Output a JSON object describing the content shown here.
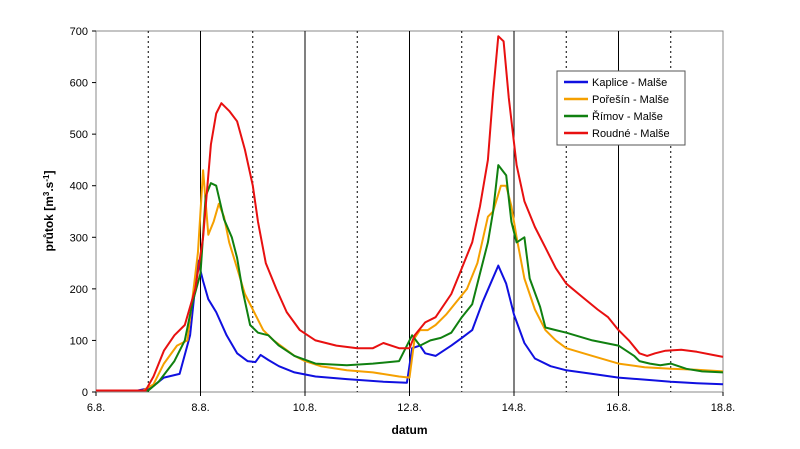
{
  "chart_data": {
    "type": "line",
    "title": "",
    "xlabel": "datum",
    "ylabel": "průtok [m³.s⁻¹]",
    "ylabel_parts": {
      "base": "průtok [m",
      "sup1": "3",
      "mid": ".s",
      "sup2": "-1",
      "end": "]"
    },
    "xlim": [
      0,
      12
    ],
    "ylim": [
      0,
      700
    ],
    "x_ticks": [
      {
        "x": 0,
        "label": "6.8."
      },
      {
        "x": 2,
        "label": "8.8."
      },
      {
        "x": 4,
        "label": "10.8."
      },
      {
        "x": 6,
        "label": "12.8."
      },
      {
        "x": 8,
        "label": "14.8."
      },
      {
        "x": 10,
        "label": "16.8."
      },
      {
        "x": 12,
        "label": "18.8."
      }
    ],
    "y_ticks": [
      0,
      100,
      200,
      300,
      400,
      500,
      600,
      700
    ],
    "vgrid_solid": [
      2,
      4,
      6,
      8,
      10
    ],
    "vgrid_dashed": [
      1,
      3,
      5,
      7,
      9,
      11
    ],
    "legend": {
      "position": "top-right"
    },
    "series": [
      {
        "name": "Kaplice - Malše",
        "color": "#1010e0",
        "points": [
          [
            0,
            3
          ],
          [
            0.8,
            3
          ],
          [
            1.05,
            8
          ],
          [
            1.3,
            28
          ],
          [
            1.6,
            35
          ],
          [
            1.8,
            110
          ],
          [
            1.95,
            255
          ],
          [
            2.05,
            215
          ],
          [
            2.15,
            180
          ],
          [
            2.3,
            155
          ],
          [
            2.5,
            110
          ],
          [
            2.7,
            75
          ],
          [
            2.9,
            60
          ],
          [
            3.05,
            58
          ],
          [
            3.15,
            72
          ],
          [
            3.3,
            62
          ],
          [
            3.5,
            50
          ],
          [
            3.8,
            38
          ],
          [
            4.2,
            30
          ],
          [
            4.8,
            25
          ],
          [
            5.5,
            20
          ],
          [
            5.95,
            18
          ],
          [
            6.05,
            85
          ],
          [
            6.2,
            90
          ],
          [
            6.3,
            75
          ],
          [
            6.5,
            70
          ],
          [
            6.8,
            90
          ],
          [
            7.0,
            105
          ],
          [
            7.2,
            120
          ],
          [
            7.4,
            175
          ],
          [
            7.55,
            210
          ],
          [
            7.7,
            245
          ],
          [
            7.85,
            210
          ],
          [
            8.0,
            150
          ],
          [
            8.2,
            95
          ],
          [
            8.4,
            65
          ],
          [
            8.7,
            50
          ],
          [
            9.0,
            42
          ],
          [
            9.5,
            35
          ],
          [
            10.0,
            28
          ],
          [
            10.5,
            24
          ],
          [
            11.0,
            20
          ],
          [
            11.5,
            17
          ],
          [
            12.0,
            15
          ]
        ]
      },
      {
        "name": "Pořešín - Malše",
        "color": "#f5a000",
        "points": [
          [
            0,
            3
          ],
          [
            0.9,
            3
          ],
          [
            1.1,
            15
          ],
          [
            1.3,
            55
          ],
          [
            1.55,
            90
          ],
          [
            1.75,
            100
          ],
          [
            1.95,
            270
          ],
          [
            2.05,
            430
          ],
          [
            2.15,
            305
          ],
          [
            2.25,
            330
          ],
          [
            2.35,
            365
          ],
          [
            2.45,
            340
          ],
          [
            2.55,
            290
          ],
          [
            2.7,
            240
          ],
          [
            2.85,
            190
          ],
          [
            3.0,
            160
          ],
          [
            3.2,
            120
          ],
          [
            3.4,
            100
          ],
          [
            3.6,
            85
          ],
          [
            3.8,
            70
          ],
          [
            4.0,
            60
          ],
          [
            4.3,
            50
          ],
          [
            4.8,
            42
          ],
          [
            5.3,
            38
          ],
          [
            5.8,
            30
          ],
          [
            6.0,
            28
          ],
          [
            6.1,
            105
          ],
          [
            6.2,
            120
          ],
          [
            6.35,
            120
          ],
          [
            6.5,
            130
          ],
          [
            6.7,
            150
          ],
          [
            6.9,
            175
          ],
          [
            7.1,
            200
          ],
          [
            7.3,
            250
          ],
          [
            7.5,
            340
          ],
          [
            7.6,
            350
          ],
          [
            7.75,
            400
          ],
          [
            7.85,
            400
          ],
          [
            7.95,
            360
          ],
          [
            8.05,
            300
          ],
          [
            8.2,
            220
          ],
          [
            8.4,
            160
          ],
          [
            8.6,
            120
          ],
          [
            8.8,
            100
          ],
          [
            9.0,
            85
          ],
          [
            9.5,
            70
          ],
          [
            10.0,
            55
          ],
          [
            10.5,
            48
          ],
          [
            11.0,
            45
          ],
          [
            11.5,
            43
          ],
          [
            12.0,
            40
          ]
        ]
      },
      {
        "name": "Římov - Malše",
        "color": "#108010",
        "points": [
          [
            0,
            3
          ],
          [
            1.0,
            3
          ],
          [
            1.2,
            20
          ],
          [
            1.5,
            60
          ],
          [
            1.7,
            100
          ],
          [
            1.85,
            175
          ],
          [
            2.0,
            230
          ],
          [
            2.1,
            380
          ],
          [
            2.2,
            405
          ],
          [
            2.3,
            400
          ],
          [
            2.45,
            335
          ],
          [
            2.6,
            300
          ],
          [
            2.7,
            260
          ],
          [
            2.8,
            200
          ],
          [
            2.95,
            130
          ],
          [
            3.1,
            115
          ],
          [
            3.3,
            110
          ],
          [
            3.5,
            90
          ],
          [
            3.8,
            70
          ],
          [
            4.2,
            55
          ],
          [
            4.8,
            52
          ],
          [
            5.3,
            55
          ],
          [
            5.8,
            60
          ],
          [
            6.05,
            110
          ],
          [
            6.2,
            90
          ],
          [
            6.4,
            100
          ],
          [
            6.6,
            105
          ],
          [
            6.8,
            115
          ],
          [
            7.0,
            145
          ],
          [
            7.2,
            170
          ],
          [
            7.35,
            230
          ],
          [
            7.5,
            290
          ],
          [
            7.6,
            350
          ],
          [
            7.7,
            440
          ],
          [
            7.85,
            420
          ],
          [
            7.95,
            330
          ],
          [
            8.05,
            290
          ],
          [
            8.2,
            300
          ],
          [
            8.3,
            220
          ],
          [
            8.5,
            165
          ],
          [
            8.6,
            125
          ],
          [
            8.8,
            120
          ],
          [
            9.0,
            115
          ],
          [
            9.5,
            100
          ],
          [
            10.0,
            90
          ],
          [
            10.3,
            70
          ],
          [
            10.4,
            60
          ],
          [
            10.6,
            55
          ],
          [
            10.8,
            52
          ],
          [
            11.0,
            55
          ],
          [
            11.3,
            45
          ],
          [
            11.6,
            40
          ],
          [
            12.0,
            38
          ]
        ]
      },
      {
        "name": "Roudné - Malše",
        "color": "#e81010",
        "points": [
          [
            0,
            3
          ],
          [
            0.95,
            3
          ],
          [
            1.1,
            30
          ],
          [
            1.3,
            80
          ],
          [
            1.5,
            110
          ],
          [
            1.7,
            130
          ],
          [
            1.9,
            200
          ],
          [
            2.05,
            300
          ],
          [
            2.2,
            480
          ],
          [
            2.3,
            540
          ],
          [
            2.4,
            560
          ],
          [
            2.55,
            545
          ],
          [
            2.7,
            525
          ],
          [
            2.85,
            470
          ],
          [
            3.0,
            400
          ],
          [
            3.1,
            330
          ],
          [
            3.25,
            250
          ],
          [
            3.45,
            200
          ],
          [
            3.65,
            155
          ],
          [
            3.9,
            120
          ],
          [
            4.2,
            100
          ],
          [
            4.6,
            90
          ],
          [
            5.0,
            85
          ],
          [
            5.3,
            85
          ],
          [
            5.5,
            95
          ],
          [
            5.8,
            85
          ],
          [
            6.0,
            85
          ],
          [
            6.1,
            110
          ],
          [
            6.3,
            135
          ],
          [
            6.5,
            145
          ],
          [
            6.8,
            190
          ],
          [
            7.0,
            240
          ],
          [
            7.2,
            290
          ],
          [
            7.35,
            360
          ],
          [
            7.5,
            450
          ],
          [
            7.6,
            580
          ],
          [
            7.7,
            690
          ],
          [
            7.8,
            680
          ],
          [
            7.9,
            570
          ],
          [
            8.05,
            440
          ],
          [
            8.2,
            370
          ],
          [
            8.4,
            320
          ],
          [
            8.6,
            280
          ],
          [
            8.8,
            240
          ],
          [
            9.0,
            210
          ],
          [
            9.3,
            185
          ],
          [
            9.6,
            160
          ],
          [
            9.8,
            145
          ],
          [
            10.0,
            120
          ],
          [
            10.2,
            100
          ],
          [
            10.4,
            75
          ],
          [
            10.55,
            70
          ],
          [
            10.7,
            75
          ],
          [
            10.9,
            80
          ],
          [
            11.2,
            82
          ],
          [
            11.5,
            78
          ],
          [
            11.8,
            72
          ],
          [
            12.0,
            68
          ]
        ]
      }
    ]
  }
}
